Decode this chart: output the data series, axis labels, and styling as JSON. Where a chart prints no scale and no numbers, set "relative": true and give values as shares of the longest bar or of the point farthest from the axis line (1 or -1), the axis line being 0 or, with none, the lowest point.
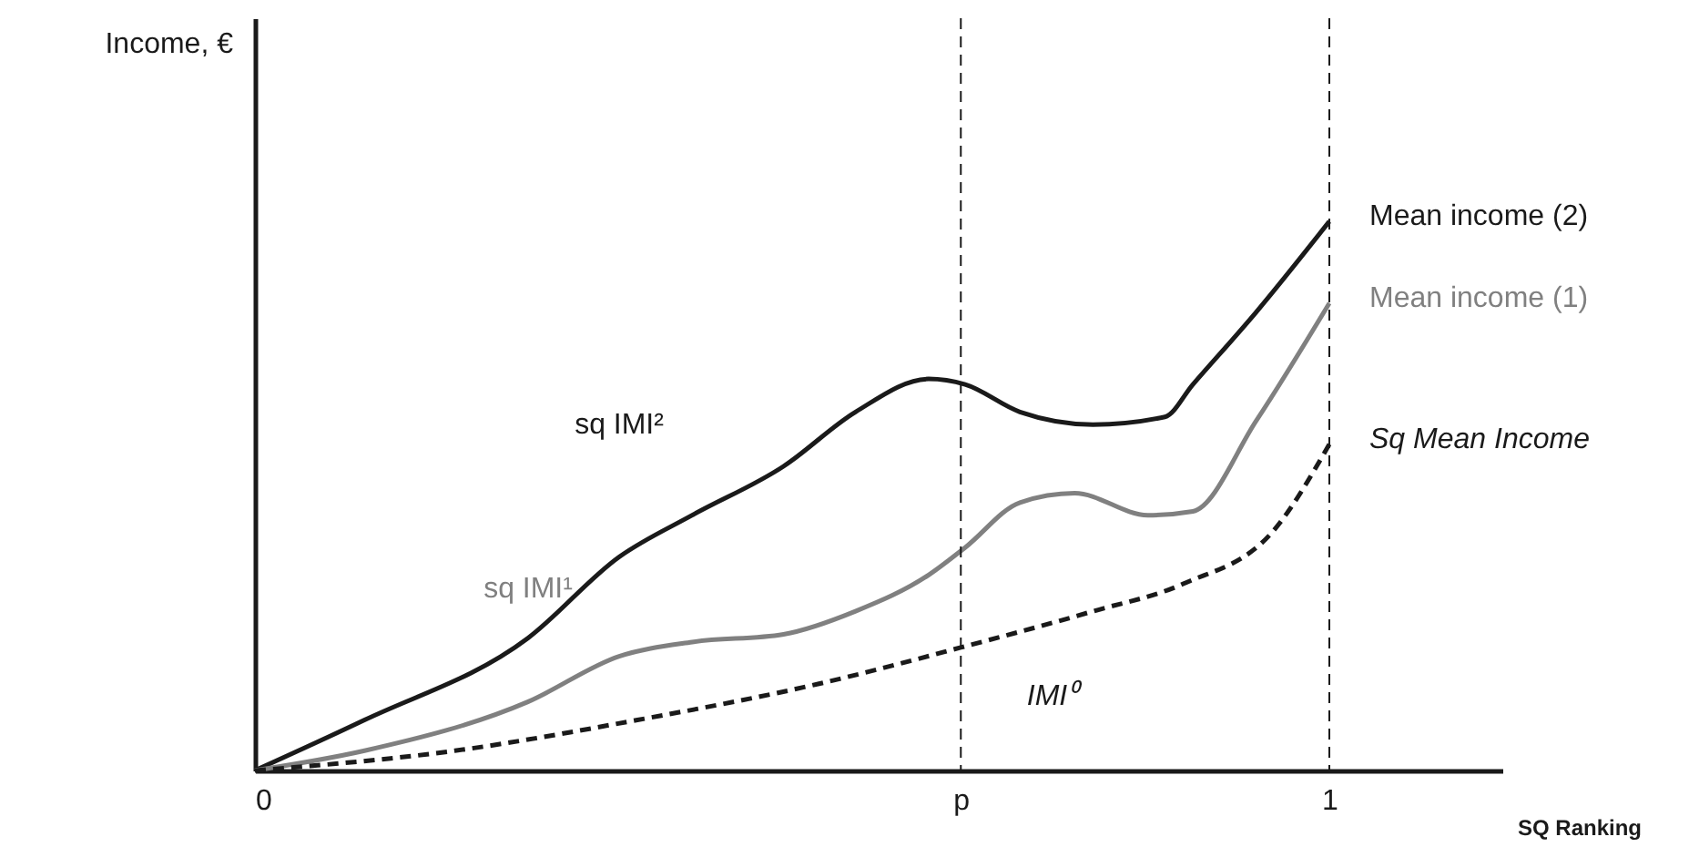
{
  "chart_data": {
    "type": "line",
    "relative": true,
    "xlabel": "SQ Ranking",
    "xlim": [
      0,
      1.161
    ],
    "xticks": [
      0,
      {
        "value": 0.657,
        "label": "p"
      },
      1
    ],
    "grid": false,
    "legend": false,
    "marker": "none",
    "series": [
      {
        "name": "Mean income (2)",
        "color": "#1a1a1a",
        "line_style": "solid",
        "x": [
          0,
          0.102,
          0.254,
          0.339,
          0.407,
          0.492,
          0.559,
          0.627,
          0.661,
          0.712,
          0.78,
          0.847,
          0.873,
          0.932,
          1
        ],
        "values": [
          0,
          0.092,
          0.241,
          0.389,
          0.465,
          0.554,
          0.653,
          0.713,
          0.703,
          0.653,
          0.63,
          0.644,
          0.703,
          0.835,
          1
        ]
      },
      {
        "name": "Mean income (1)",
        "color": "#808080",
        "line_style": "solid",
        "x": [
          0,
          0.102,
          0.254,
          0.339,
          0.407,
          0.492,
          0.559,
          0.627,
          0.661,
          0.712,
          0.763,
          0.831,
          0.873,
          0.932,
          1
        ],
        "values": [
          0,
          0.036,
          0.125,
          0.208,
          0.234,
          0.248,
          0.29,
          0.356,
          0.406,
          0.488,
          0.505,
          0.465,
          0.472,
          0.637,
          0.851
        ]
      },
      {
        "name": "Sq Mean Income",
        "color": "#1a1a1a",
        "line_style": "dashed",
        "x": [
          0,
          0.186,
          0.356,
          0.525,
          0.657,
          0.78,
          0.864,
          0.949,
          1
        ],
        "values": [
          0,
          0.036,
          0.092,
          0.158,
          0.224,
          0.29,
          0.34,
          0.439,
          0.594
        ]
      }
    ],
    "ref_lines": [
      {
        "axis": "x",
        "value": 0.657,
        "line_style": "dashed"
      },
      {
        "axis": "x",
        "value": 1,
        "line_style": "dashed"
      }
    ],
    "annotations": [
      "sq IMI²",
      "sq  IMI¹",
      "IMI⁰",
      "Income, €"
    ]
  }
}
